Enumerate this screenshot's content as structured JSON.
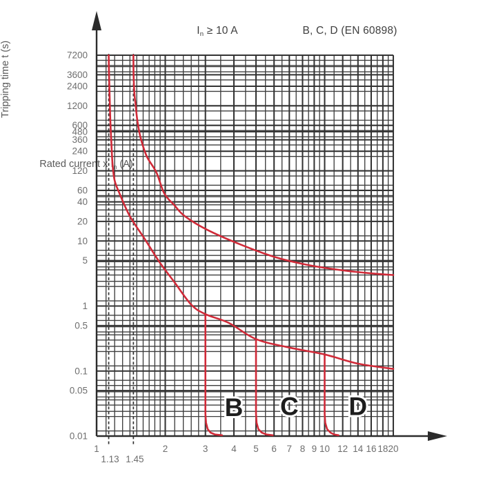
{
  "titles": {
    "top_left": {
      "pre": "I",
      "sub": "n",
      "post": " ≥ 10 A"
    },
    "top_right": "B, C, D (EN 60898)"
  },
  "axes": {
    "y_label": "Tripping time  t (s)",
    "x_label": {
      "pre": "Rated current  x  I",
      "sub": "n",
      "post": " (A)"
    }
  },
  "chart_data": {
    "type": "line",
    "x_scale": "log",
    "y_scale": "log",
    "x_axis": {
      "label": "Rated current x In (A)",
      "range": [
        1,
        20
      ],
      "major_ticks": [
        1,
        2,
        3,
        4,
        5,
        6,
        7,
        8,
        9,
        10,
        12,
        14,
        16,
        18,
        20
      ],
      "minor_gridlines": [
        1.1,
        1.2,
        1.3,
        1.4,
        1.5,
        1.6,
        1.7,
        1.8,
        1.9,
        2.2,
        2.4,
        2.6,
        2.8,
        3.5,
        4.5,
        5.5,
        6.5,
        7.5,
        8.5,
        9.5,
        11,
        13,
        15,
        17,
        19
      ],
      "special_dashed": [
        {
          "value": 1.13,
          "label": "1.13"
        },
        {
          "value": 1.45,
          "label": "1.45"
        }
      ]
    },
    "y_axis": {
      "label": "Tripping time t (s)",
      "range": [
        0.01,
        7200
      ],
      "tick_labels": [
        "7200",
        "3600",
        "2400",
        "1200",
        "600",
        "480",
        "360",
        "240",
        "120",
        "60",
        "40",
        "20",
        "10",
        "5",
        "1",
        "0.5",
        "0.1",
        "0.05",
        "0.01"
      ],
      "grid_mantissas": [
        1,
        1.2,
        2,
        2.4,
        3,
        3.6,
        4,
        4.8,
        5,
        6,
        7.2
      ]
    },
    "series": [
      {
        "name": "lower-tripping-limit",
        "description": "Lower thermal trip boundary (conventional non-tripping current 1.13 x In)",
        "smooth": true,
        "points": [
          [
            1.13,
            7200
          ],
          [
            1.134,
            3600
          ],
          [
            1.14,
            1800
          ],
          [
            1.149,
            700
          ],
          [
            1.16,
            340
          ],
          [
            1.175,
            150
          ],
          [
            1.2,
            85
          ],
          [
            1.26,
            54
          ],
          [
            1.4,
            24
          ],
          [
            1.63,
            10.6
          ],
          [
            1.89,
            4.7
          ],
          [
            2.2,
            2.3
          ],
          [
            2.6,
            1.05
          ],
          [
            3.0,
            0.75
          ],
          [
            3.8,
            0.55
          ],
          [
            5.0,
            0.31
          ],
          [
            7.0,
            0.23
          ],
          [
            10.0,
            0.18
          ],
          [
            14.0,
            0.13
          ],
          [
            20.0,
            0.108
          ]
        ]
      },
      {
        "name": "upper-tripping-limit",
        "description": "Upper thermal trip boundary (conventional tripping current 1.45 x In)",
        "smooth": true,
        "points": [
          [
            1.45,
            7200
          ],
          [
            1.452,
            4000
          ],
          [
            1.458,
            2500
          ],
          [
            1.468,
            1700
          ],
          [
            1.48,
            1330
          ],
          [
            1.51,
            700
          ],
          [
            1.56,
            385
          ],
          [
            1.66,
            200
          ],
          [
            1.83,
            113
          ],
          [
            1.98,
            54
          ],
          [
            2.2,
            35
          ],
          [
            2.44,
            24
          ],
          [
            3.05,
            14.9
          ],
          [
            4.32,
            8.7
          ],
          [
            6.12,
            5.6
          ],
          [
            8.67,
            4.2
          ],
          [
            12.3,
            3.5
          ],
          [
            17.4,
            3.1
          ],
          [
            20.0,
            3.0
          ]
        ]
      },
      {
        "name": "instantaneous-trip-B",
        "description": "Magnetic trip at 3 x In (curve B)",
        "smooth": false,
        "points": [
          [
            3.0,
            0.75
          ],
          [
            3.0,
            0.022
          ],
          [
            3.02,
            0.016
          ],
          [
            3.07,
            0.0128
          ],
          [
            3.16,
            0.0113
          ],
          [
            3.3,
            0.0106
          ],
          [
            3.55,
            0.0103
          ]
        ]
      },
      {
        "name": "instantaneous-trip-C",
        "description": "Magnetic trip at 5 x In (curve C)",
        "smooth": false,
        "points": [
          [
            5.0,
            0.31
          ],
          [
            5.0,
            0.022
          ],
          [
            5.03,
            0.016
          ],
          [
            5.12,
            0.0128
          ],
          [
            5.3,
            0.0113
          ],
          [
            5.55,
            0.0106
          ],
          [
            5.92,
            0.0103
          ]
        ]
      },
      {
        "name": "instantaneous-trip-D",
        "description": "Magnetic trip at 10 x In (curve D)",
        "smooth": false,
        "points": [
          [
            10.0,
            0.18
          ],
          [
            10.0,
            0.022
          ],
          [
            10.06,
            0.016
          ],
          [
            10.25,
            0.0128
          ],
          [
            10.6,
            0.0113
          ],
          [
            11.0,
            0.0106
          ],
          [
            11.5,
            0.0103
          ]
        ]
      }
    ],
    "region_labels": [
      {
        "text": "B",
        "x": 4.0,
        "t": 0.028
      },
      {
        "text": "C",
        "x": 7.0,
        "t": 0.029
      },
      {
        "text": "D",
        "x": 14.0,
        "t": 0.029
      }
    ]
  },
  "colors": {
    "curve": "#d02a38",
    "grid_minor": "#3d3d3d",
    "grid_major": "#333333",
    "axis": "#2b2b2b",
    "dashed": "#333333",
    "tick_label": "#6e6e6e",
    "title": "#3f3f3f",
    "letters": "#1e1e1e"
  }
}
